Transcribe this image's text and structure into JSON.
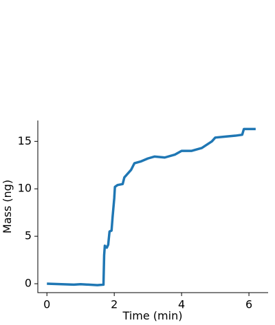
{
  "chart_data": {
    "type": "line",
    "xlabel": "Time (min)",
    "ylabel": "Mass (ng)",
    "x": [
      0,
      0.8,
      1.0,
      1.5,
      1.68,
      1.7,
      1.72,
      1.78,
      1.82,
      1.86,
      1.92,
      1.95,
      2.0,
      2.02,
      2.1,
      2.25,
      2.3,
      2.5,
      2.6,
      2.8,
      3.0,
      3.2,
      3.5,
      3.8,
      4.0,
      4.3,
      4.6,
      4.9,
      5.0,
      5.3,
      5.6,
      5.8,
      5.85,
      6.0,
      6.2
    ],
    "series": [
      {
        "name": "Mass",
        "color": "#1f77b4",
        "values": [
          0,
          -0.1,
          -0.05,
          -0.15,
          -0.1,
          3.0,
          4.0,
          3.8,
          4.1,
          5.5,
          5.6,
          7,
          9,
          10.2,
          10.4,
          10.5,
          11.2,
          12,
          12.7,
          12.9,
          13.2,
          13.4,
          13.3,
          13.6,
          14.0,
          14.0,
          14.3,
          15.0,
          15.4,
          15.5,
          15.6,
          15.7,
          16.3,
          16.3,
          16.3
        ]
      }
    ],
    "xlim": [
      -0.27,
      6.57
    ],
    "ylim": [
      -0.94,
      17.2
    ],
    "xticks": [
      0,
      2,
      4,
      6
    ],
    "yticks": [
      0,
      5,
      10,
      15
    ]
  }
}
